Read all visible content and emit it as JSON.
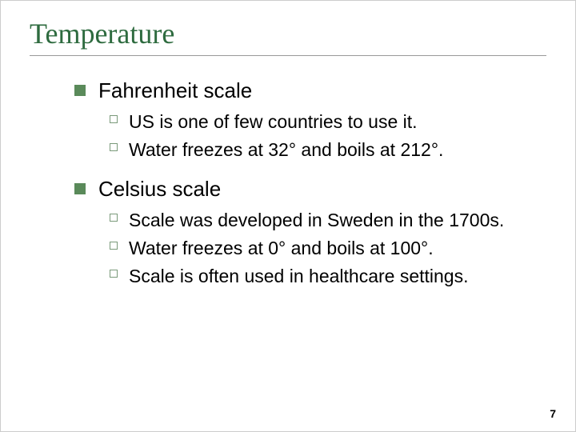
{
  "slide": {
    "title": "Temperature",
    "title_color": "#2e6b3f",
    "title_fontsize": 36,
    "title_underline_color": "#999999",
    "bullet_l1_color": "#5a8a5a",
    "bullet_l2_border_color": "#7a9a7a",
    "text_color": "#000000",
    "body_fontsize_l1": 26,
    "body_fontsize_l2": 23,
    "background_color": "#ffffff",
    "items": [
      {
        "label": "Fahrenheit scale",
        "sub": [
          "US is one of few countries to use it.",
          "Water freezes at 32° and boils at 212°."
        ]
      },
      {
        "label": "Celsius scale",
        "sub": [
          "Scale was developed in Sweden in the 1700s.",
          "Water freezes at 0° and boils at 100°.",
          "Scale is often used in healthcare settings."
        ]
      }
    ],
    "page_number": "7",
    "page_number_fontsize": 14
  }
}
